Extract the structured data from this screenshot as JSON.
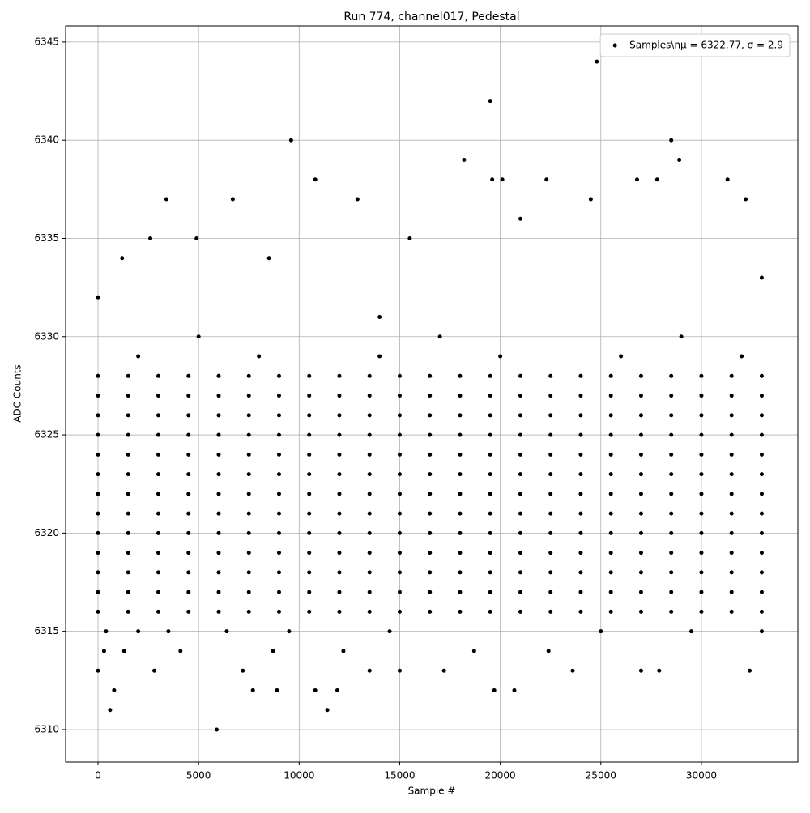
{
  "chart_data": {
    "type": "scatter",
    "title": "Run 774, channel017, Pedestal",
    "x_label": "Sample #",
    "y_label": "ADC Counts",
    "series": [
      {
        "name": "Samples\\nμ = 6322.77, σ = 2.9",
        "color": "#000000",
        "x": [
          0,
          1500,
          3000,
          4500,
          6000,
          7500,
          9000,
          10500,
          12000,
          13500,
          15000,
          16500,
          18000,
          19500,
          21000,
          22500,
          24000,
          25500,
          27000,
          28500,
          30000,
          31500,
          33000,
          0,
          1500,
          3000,
          4500,
          6000,
          7500,
          9000,
          10500,
          12000,
          13500,
          15000,
          16500,
          18000,
          19500,
          21000,
          22500,
          24000,
          25500,
          27000,
          28500,
          30000,
          31500,
          33000,
          0,
          1500,
          3000,
          4500,
          6000,
          7500,
          9000,
          10500,
          12000,
          13500,
          15000,
          16500,
          18000,
          19500,
          21000,
          22500,
          24000,
          25500,
          27000,
          28500,
          30000,
          31500,
          33000,
          0,
          1500,
          3000,
          4500,
          6000,
          7500,
          9000,
          10500,
          12000,
          13500,
          15000,
          16500,
          18000,
          19500,
          21000,
          22500,
          24000,
          25500,
          27000,
          28500,
          30000,
          31500,
          33000,
          0,
          1500,
          3000,
          4500,
          6000,
          7500,
          9000,
          10500,
          12000,
          13500,
          15000,
          16500,
          18000,
          19500,
          21000,
          22500,
          24000,
          25500,
          27000,
          28500,
          30000,
          31500,
          33000,
          0,
          1500,
          3000,
          4500,
          6000,
          7500,
          9000,
          10500,
          12000,
          13500,
          15000,
          16500,
          18000,
          19500,
          21000,
          22500,
          24000,
          25500,
          27000,
          28500,
          30000,
          31500,
          33000,
          0,
          1500,
          3000,
          4500,
          6000,
          7500,
          9000,
          10500,
          12000,
          13500,
          15000,
          16500,
          18000,
          19500,
          21000,
          22500,
          24000,
          25500,
          27000,
          28500,
          30000,
          31500,
          33000,
          0,
          1500,
          3000,
          4500,
          6000,
          7500,
          9000,
          10500,
          12000,
          13500,
          15000,
          16500,
          18000,
          19500,
          21000,
          22500,
          24000,
          25500,
          27000,
          28500,
          30000,
          31500,
          33000,
          0,
          1500,
          3000,
          4500,
          6000,
          7500,
          9000,
          10500,
          12000,
          13500,
          15000,
          16500,
          18000,
          19500,
          21000,
          22500,
          24000,
          25500,
          27000,
          28500,
          30000,
          31500,
          33000,
          0,
          1500,
          3000,
          4500,
          6000,
          7500,
          9000,
          10500,
          12000,
          13500,
          15000,
          16500,
          18000,
          19500,
          21000,
          22500,
          24000,
          25500,
          27000,
          28500,
          30000,
          31500,
          33000,
          0,
          1500,
          3000,
          4500,
          6000,
          7500,
          9000,
          10500,
          12000,
          13500,
          15000,
          16500,
          18000,
          19500,
          21000,
          22500,
          24000,
          25500,
          27000,
          28500,
          30000,
          31500,
          33000,
          0,
          1500,
          3000,
          4500,
          6000,
          7500,
          9000,
          10500,
          12000,
          13500,
          15000,
          16500,
          18000,
          19500,
          21000,
          22500,
          24000,
          25500,
          27000,
          28500,
          30000,
          31500,
          33000,
          0,
          1500,
          3000,
          4500,
          6000,
          7500,
          9000,
          10500,
          12000,
          13500,
          15000,
          16500,
          18000,
          19500,
          21000,
          22500,
          24000,
          25500,
          27000,
          28500,
          30000,
          31500,
          33000,
          0,
          600,
          5900,
          11400,
          800,
          7700,
          8900,
          10800,
          11900,
          19700,
          20700,
          2800,
          7200,
          13500,
          15000,
          17200,
          23600,
          27000,
          27900,
          32400,
          300,
          1300,
          4100,
          8700,
          12200,
          18700,
          22400,
          400,
          2000,
          3500,
          6400,
          9500,
          14500,
          25000,
          29500,
          33000,
          0,
          1200,
          2600,
          3400,
          6700,
          9600,
          10800,
          12900,
          18200,
          19500,
          19600,
          20100,
          22300,
          24800,
          24500,
          26800,
          27800,
          28500,
          28900,
          31300,
          32200,
          33000,
          15500,
          21000,
          4900,
          14000,
          8500,
          2000,
          8000,
          14000,
          20000,
          26000,
          32000,
          5000,
          17000,
          29000
        ],
        "values": [
          6316,
          6316,
          6316,
          6316,
          6316,
          6316,
          6316,
          6316,
          6316,
          6316,
          6316,
          6316,
          6316,
          6316,
          6316,
          6316,
          6316,
          6316,
          6316,
          6316,
          6316,
          6316,
          6316,
          6317,
          6317,
          6317,
          6317,
          6317,
          6317,
          6317,
          6317,
          6317,
          6317,
          6317,
          6317,
          6317,
          6317,
          6317,
          6317,
          6317,
          6317,
          6317,
          6317,
          6317,
          6317,
          6317,
          6318,
          6318,
          6318,
          6318,
          6318,
          6318,
          6318,
          6318,
          6318,
          6318,
          6318,
          6318,
          6318,
          6318,
          6318,
          6318,
          6318,
          6318,
          6318,
          6318,
          6318,
          6318,
          6318,
          6319,
          6319,
          6319,
          6319,
          6319,
          6319,
          6319,
          6319,
          6319,
          6319,
          6319,
          6319,
          6319,
          6319,
          6319,
          6319,
          6319,
          6319,
          6319,
          6319,
          6319,
          6319,
          6319,
          6320,
          6320,
          6320,
          6320,
          6320,
          6320,
          6320,
          6320,
          6320,
          6320,
          6320,
          6320,
          6320,
          6320,
          6320,
          6320,
          6320,
          6320,
          6320,
          6320,
          6320,
          6320,
          6320,
          6321,
          6321,
          6321,
          6321,
          6321,
          6321,
          6321,
          6321,
          6321,
          6321,
          6321,
          6321,
          6321,
          6321,
          6321,
          6321,
          6321,
          6321,
          6321,
          6321,
          6321,
          6321,
          6321,
          6322,
          6322,
          6322,
          6322,
          6322,
          6322,
          6322,
          6322,
          6322,
          6322,
          6322,
          6322,
          6322,
          6322,
          6322,
          6322,
          6322,
          6322,
          6322,
          6322,
          6322,
          6322,
          6322,
          6323,
          6323,
          6323,
          6323,
          6323,
          6323,
          6323,
          6323,
          6323,
          6323,
          6323,
          6323,
          6323,
          6323,
          6323,
          6323,
          6323,
          6323,
          6323,
          6323,
          6323,
          6323,
          6323,
          6324,
          6324,
          6324,
          6324,
          6324,
          6324,
          6324,
          6324,
          6324,
          6324,
          6324,
          6324,
          6324,
          6324,
          6324,
          6324,
          6324,
          6324,
          6324,
          6324,
          6324,
          6324,
          6324,
          6325,
          6325,
          6325,
          6325,
          6325,
          6325,
          6325,
          6325,
          6325,
          6325,
          6325,
          6325,
          6325,
          6325,
          6325,
          6325,
          6325,
          6325,
          6325,
          6325,
          6325,
          6325,
          6325,
          6326,
          6326,
          6326,
          6326,
          6326,
          6326,
          6326,
          6326,
          6326,
          6326,
          6326,
          6326,
          6326,
          6326,
          6326,
          6326,
          6326,
          6326,
          6326,
          6326,
          6326,
          6326,
          6326,
          6327,
          6327,
          6327,
          6327,
          6327,
          6327,
          6327,
          6327,
          6327,
          6327,
          6327,
          6327,
          6327,
          6327,
          6327,
          6327,
          6327,
          6327,
          6327,
          6327,
          6327,
          6327,
          6327,
          6328,
          6328,
          6328,
          6328,
          6328,
          6328,
          6328,
          6328,
          6328,
          6328,
          6328,
          6328,
          6328,
          6328,
          6328,
          6328,
          6328,
          6328,
          6328,
          6328,
          6328,
          6328,
          6328,
          6313,
          6311,
          6310,
          6311,
          6312,
          6312,
          6312,
          6312,
          6312,
          6312,
          6312,
          6313,
          6313,
          6313,
          6313,
          6313,
          6313,
          6313,
          6313,
          6313,
          6314,
          6314,
          6314,
          6314,
          6314,
          6314,
          6314,
          6315,
          6315,
          6315,
          6315,
          6315,
          6315,
          6315,
          6315,
          6315,
          6332,
          6334,
          6335,
          6337,
          6337,
          6340,
          6338,
          6337,
          6339,
          6342,
          6338,
          6338,
          6338,
          6344,
          6337,
          6338,
          6338,
          6340,
          6339,
          6338,
          6337,
          6333,
          6335,
          6336,
          6335,
          6331,
          6334,
          6329,
          6329,
          6329,
          6329,
          6329,
          6329,
          6330,
          6330,
          6330
        ]
      }
    ],
    "xlim": [
      -1611,
      34795
    ],
    "xticks": [
      0,
      5000,
      10000,
      15000,
      20000,
      25000,
      30000
    ],
    "ylim": [
      6308.35,
      6345.82
    ],
    "yticks": [
      6310,
      6315,
      6320,
      6325,
      6330,
      6335,
      6340,
      6345
    ],
    "grid": true,
    "legend": "upper right"
  }
}
